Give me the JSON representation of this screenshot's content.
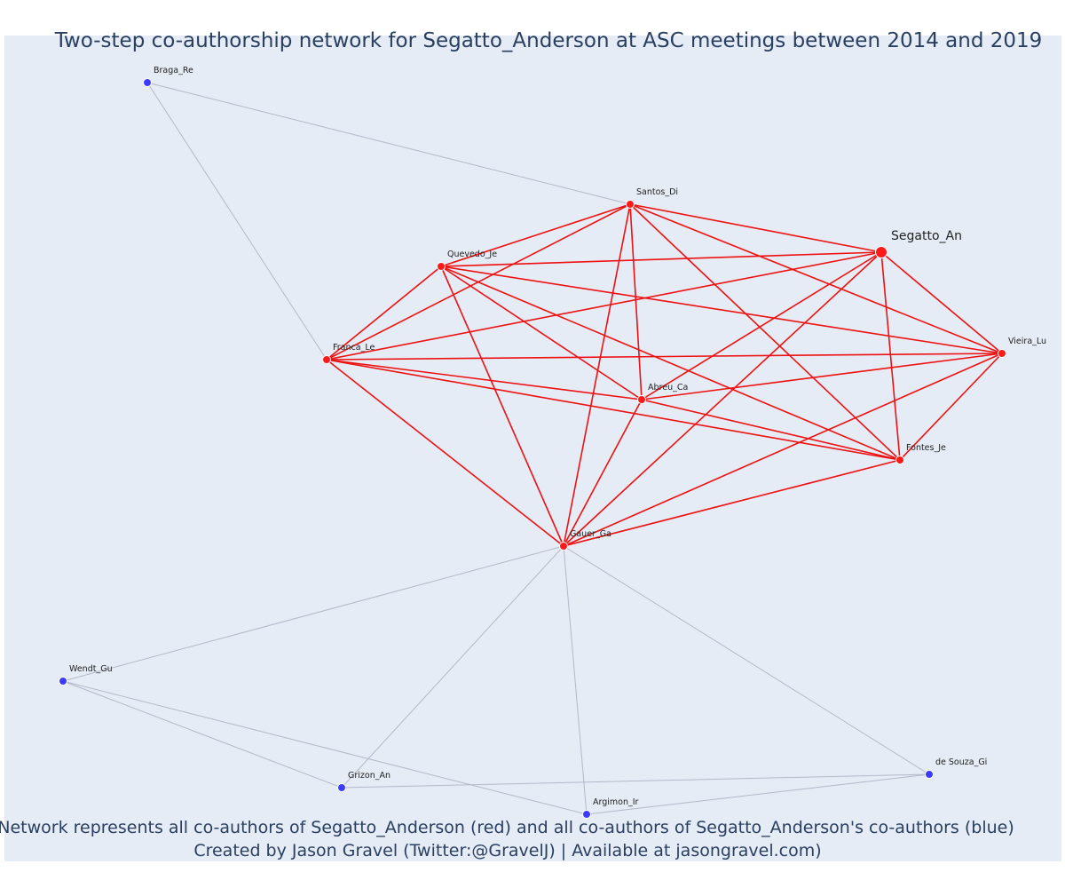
{
  "title": "Two-step co-authorship network for Segatto_Anderson at ASC meetings between 2014 and 2019",
  "caption_line1": "Network represents all co-authors of Segatto_Anderson (red) and all co-authors of Segatto_Anderson's co-authors (blue)",
  "caption_line2": "Created by Jason Gravel (Twitter:@GravelJ) | Available at jasongravel.com)",
  "colors": {
    "background": "#e5ecf6",
    "coauthor": "#ff1a1a",
    "second_step": "#3b3bff",
    "red_edge": "#ee1111",
    "gray_edge": "#b4b8c8",
    "text": "#2a3f5f"
  },
  "chart_data": {
    "type": "network",
    "nodes": [
      {
        "id": "Segatto_An",
        "label": "Segatto_An",
        "group": "focal"
      },
      {
        "id": "Santos_Di",
        "label": "Santos_Di",
        "group": "coauthor"
      },
      {
        "id": "Quevedo_Je",
        "label": "Quevedo_Je",
        "group": "coauthor"
      },
      {
        "id": "Franca_Le",
        "label": "Franca_Le",
        "group": "coauthor"
      },
      {
        "id": "Vieira_Lu",
        "label": "Vieira_Lu",
        "group": "coauthor"
      },
      {
        "id": "Abreu_Ca",
        "label": "Abreu_Ca",
        "group": "coauthor"
      },
      {
        "id": "Fontes_Je",
        "label": "Fontes_Je",
        "group": "coauthor"
      },
      {
        "id": "Gauer_Ga",
        "label": "Gauer_Ga",
        "group": "coauthor"
      },
      {
        "id": "Braga_Re",
        "label": "Braga_Re",
        "group": "second_step"
      },
      {
        "id": "Wendt_Gu",
        "label": "Wendt_Gu",
        "group": "second_step"
      },
      {
        "id": "Grizon_An",
        "label": "Grizon_An",
        "group": "second_step"
      },
      {
        "id": "Argimon_Ir",
        "label": "Argimon_Ir",
        "group": "second_step"
      },
      {
        "id": "de Souza_Gi",
        "label": "de Souza_Gi",
        "group": "second_step"
      }
    ],
    "edges": [
      [
        "Santos_Di",
        "Segatto_An"
      ],
      [
        "Santos_Di",
        "Quevedo_Je"
      ],
      [
        "Santos_Di",
        "Franca_Le"
      ],
      [
        "Santos_Di",
        "Vieira_Lu"
      ],
      [
        "Santos_Di",
        "Abreu_Ca"
      ],
      [
        "Santos_Di",
        "Fontes_Je"
      ],
      [
        "Santos_Di",
        "Gauer_Ga"
      ],
      [
        "Quevedo_Je",
        "Segatto_An"
      ],
      [
        "Quevedo_Je",
        "Franca_Le"
      ],
      [
        "Quevedo_Je",
        "Vieira_Lu"
      ],
      [
        "Quevedo_Je",
        "Abreu_Ca"
      ],
      [
        "Quevedo_Je",
        "Fontes_Je"
      ],
      [
        "Quevedo_Je",
        "Gauer_Ga"
      ],
      [
        "Franca_Le",
        "Segatto_An"
      ],
      [
        "Franca_Le",
        "Vieira_Lu"
      ],
      [
        "Franca_Le",
        "Abreu_Ca"
      ],
      [
        "Franca_Le",
        "Fontes_Je"
      ],
      [
        "Franca_Le",
        "Gauer_Ga"
      ],
      [
        "Segatto_An",
        "Vieira_Lu"
      ],
      [
        "Segatto_An",
        "Abreu_Ca"
      ],
      [
        "Segatto_An",
        "Fontes_Je"
      ],
      [
        "Segatto_An",
        "Gauer_Ga"
      ],
      [
        "Vieira_Lu",
        "Abreu_Ca"
      ],
      [
        "Vieira_Lu",
        "Fontes_Je"
      ],
      [
        "Vieira_Lu",
        "Gauer_Ga"
      ],
      [
        "Abreu_Ca",
        "Fontes_Je"
      ],
      [
        "Abreu_Ca",
        "Gauer_Ga"
      ],
      [
        "Fontes_Je",
        "Gauer_Ga"
      ],
      [
        "Braga_Re",
        "Santos_Di"
      ],
      [
        "Braga_Re",
        "Franca_Le"
      ],
      [
        "Gauer_Ga",
        "Wendt_Gu"
      ],
      [
        "Gauer_Ga",
        "Grizon_An"
      ],
      [
        "Gauer_Ga",
        "Argimon_Ir"
      ],
      [
        "Gauer_Ga",
        "de Souza_Gi"
      ],
      [
        "Wendt_Gu",
        "Grizon_An"
      ],
      [
        "Wendt_Gu",
        "Argimon_Ir"
      ],
      [
        "Grizon_An",
        "de Souza_Gi"
      ],
      [
        "Argimon_Ir",
        "de Souza_Gi"
      ]
    ]
  }
}
